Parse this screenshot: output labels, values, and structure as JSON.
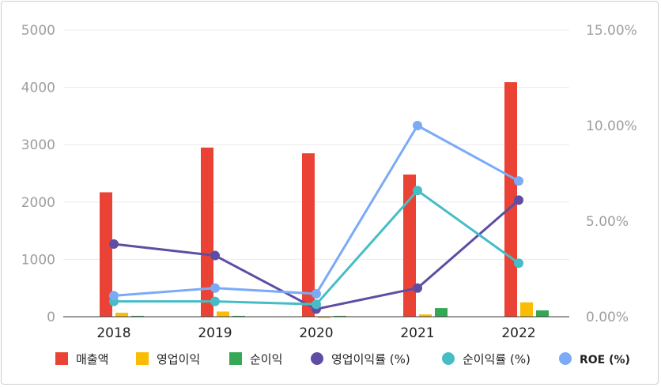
{
  "chart_data": {
    "type": "bar",
    "categories": [
      "2018",
      "2019",
      "2020",
      "2021",
      "2022"
    ],
    "y_left": {
      "ylim": [
        0,
        5000
      ],
      "ticks": [
        "0",
        "1000",
        "2000",
        "3000",
        "4000",
        "5000"
      ]
    },
    "y_right": {
      "ylim": [
        0,
        15
      ],
      "ticks": [
        "0.00%",
        "5.00%",
        "10.00%",
        "15.00%"
      ]
    },
    "grid": true,
    "legend_position": "bottom",
    "series": [
      {
        "name": "매출액",
        "kind": "bar",
        "axis": "left",
        "color": "#ea4335",
        "values": [
          2170,
          2950,
          2850,
          2480,
          4090
        ]
      },
      {
        "name": "영업이익",
        "kind": "bar",
        "axis": "left",
        "color": "#fbbc04",
        "values": [
          70,
          90,
          -20,
          40,
          250
        ]
      },
      {
        "name": "순이익",
        "kind": "bar",
        "axis": "left",
        "color": "#34a853",
        "values": [
          15,
          15,
          15,
          150,
          110
        ]
      },
      {
        "name": "영업이익률 (%)",
        "kind": "line",
        "axis": "right",
        "color": "#5e4da3",
        "values": [
          3.8,
          3.2,
          0.4,
          1.5,
          6.1
        ]
      },
      {
        "name": "순이익률 (%)",
        "kind": "line",
        "axis": "right",
        "color": "#46bdc6",
        "values": [
          0.8,
          0.8,
          0.65,
          6.6,
          2.8
        ]
      },
      {
        "name": "ROE (%)",
        "kind": "line",
        "axis": "right",
        "color": "#7baaf7",
        "values": [
          1.1,
          1.5,
          1.2,
          10.0,
          7.1
        ]
      }
    ]
  }
}
